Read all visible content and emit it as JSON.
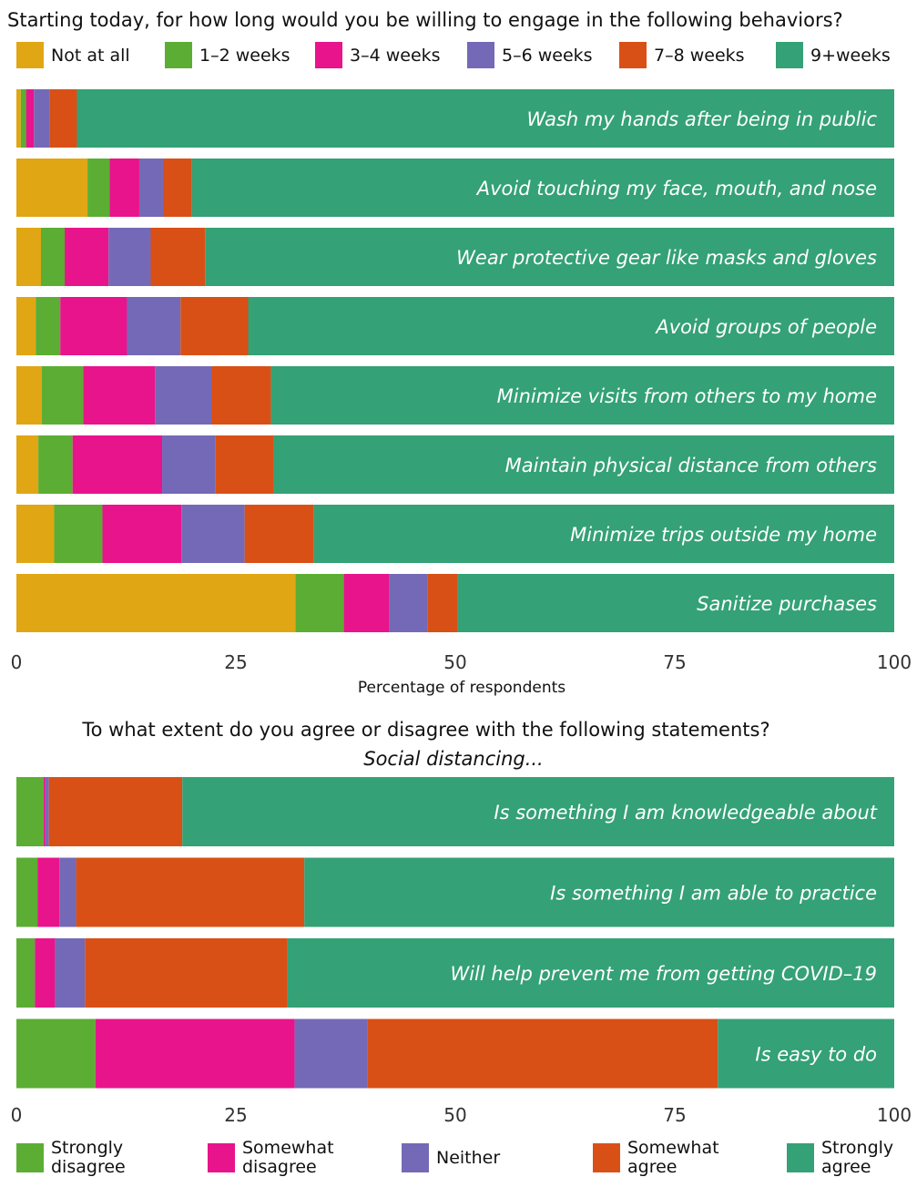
{
  "chart_data": [
    {
      "type": "bar",
      "orientation": "horizontal",
      "stacked": true,
      "title": "Starting today, for how long would you be willing to engage in the following behaviors?",
      "xlabel": "Percentage of respondents",
      "xlim": [
        0,
        100
      ],
      "xticks": [
        "0",
        "25",
        "50",
        "75",
        "100"
      ],
      "legend_position": "top",
      "categories": [
        "Wash my hands after being in public",
        "Avoid touching my face, mouth, and nose",
        "Wear protective gear like masks and gloves",
        "Avoid groups of people",
        "Minimize visits from others to my home",
        "Maintain physical distance from others",
        "Minimize trips outside my home",
        "Sanitize purchases"
      ],
      "series": [
        {
          "name": "Not at all",
          "color": "#E0A614",
          "values": [
            0.5,
            8.1,
            2.8,
            2.2,
            2.9,
            2.5,
            4.3,
            31.8
          ]
        },
        {
          "name": "1–2 weeks",
          "color": "#5BAE33",
          "values": [
            0.6,
            2.5,
            2.7,
            2.8,
            4.7,
            3.9,
            5.5,
            5.5
          ]
        },
        {
          "name": "3–4 weeks",
          "color": "#E8148C",
          "values": [
            0.9,
            3.4,
            5.0,
            7.6,
            8.2,
            10.2,
            9.0,
            5.2
          ]
        },
        {
          "name": "5–6 weeks",
          "color": "#7469B6",
          "values": [
            1.8,
            2.7,
            4.8,
            6.1,
            6.4,
            6.1,
            7.2,
            4.3
          ]
        },
        {
          "name": "7–8 weeks",
          "color": "#D95016",
          "values": [
            3.1,
            3.3,
            6.2,
            7.7,
            6.8,
            6.6,
            7.9,
            3.5
          ]
        },
        {
          "name": "9+weeks",
          "color": "#34A176",
          "values": [
            93.1,
            80.0,
            78.5,
            73.6,
            71.0,
            70.7,
            66.1,
            49.7
          ]
        }
      ]
    },
    {
      "type": "bar",
      "orientation": "horizontal",
      "stacked": true,
      "title": "To what extent do you agree or disagree with the following statements?",
      "subtitle": "Social distancing...",
      "xlim": [
        0,
        100
      ],
      "xticks": [
        "0",
        "25",
        "50",
        "75",
        "100"
      ],
      "legend_position": "bottom",
      "categories": [
        "Is something I am knowledgeable about",
        "Is something I am able to practice",
        "Will help prevent me from getting COVID–19",
        "Is easy to do"
      ],
      "series": [
        {
          "name": [
            "Strongly",
            "disagree"
          ],
          "color": "#5BAE33",
          "values": [
            3.1,
            2.4,
            2.1,
            9.0
          ]
        },
        {
          "name": [
            "Somewhat",
            "disagree"
          ],
          "color": "#E8148C",
          "values": [
            0.2,
            2.5,
            2.3,
            22.7
          ]
        },
        {
          "name": [
            "Neither"
          ],
          "color": "#7469B6",
          "values": [
            0.4,
            1.9,
            3.4,
            8.3
          ]
        },
        {
          "name": [
            "Somewhat",
            "agree"
          ],
          "color": "#D95016",
          "values": [
            15.2,
            26.0,
            23.1,
            39.9
          ]
        },
        {
          "name": [
            "Strongly",
            "agree"
          ],
          "color": "#34A176",
          "values": [
            81.1,
            67.2,
            69.1,
            20.1
          ]
        }
      ]
    }
  ]
}
